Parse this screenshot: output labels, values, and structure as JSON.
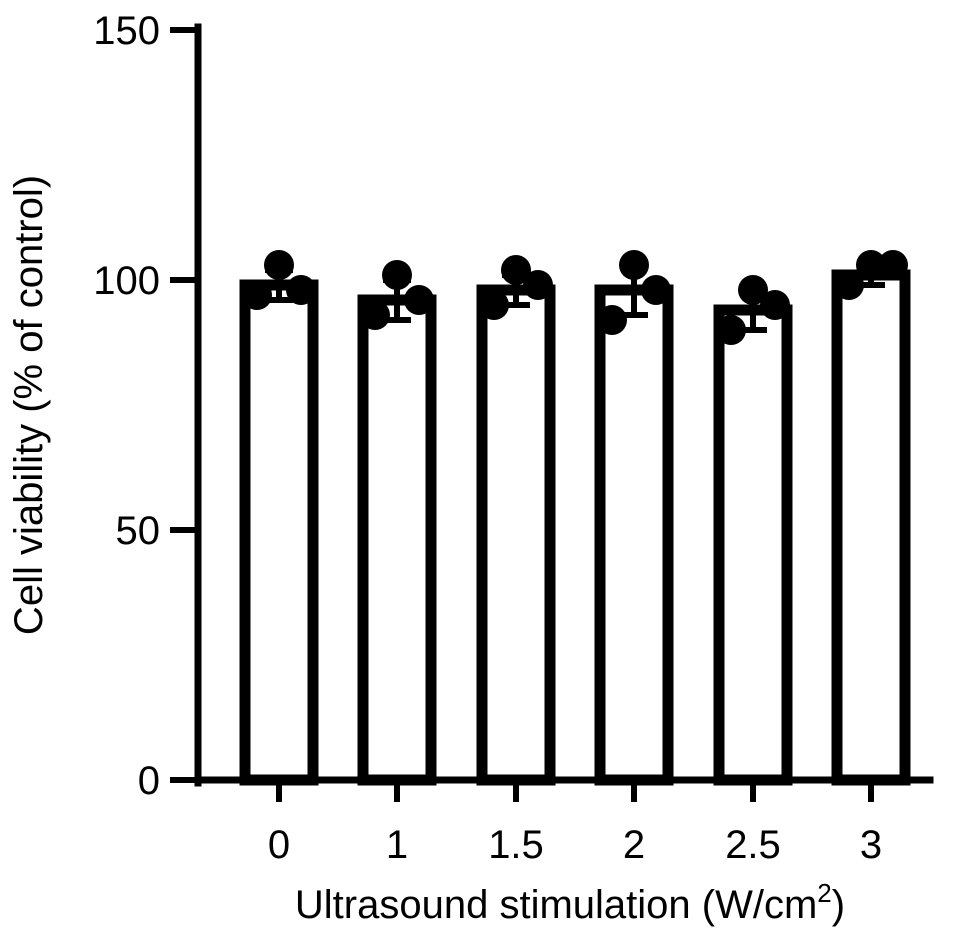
{
  "chart_data": {
    "type": "bar",
    "categories": [
      "0",
      "1",
      "1.5",
      "2",
      "2.5",
      "3"
    ],
    "values": [
      99,
      96,
      98,
      98,
      94,
      101
    ],
    "error": [
      3,
      4,
      3,
      5,
      4,
      2
    ],
    "points": [
      [
        97,
        103,
        98
      ],
      [
        93,
        101,
        96
      ],
      [
        95,
        102,
        99
      ],
      [
        92,
        103,
        98
      ],
      [
        90,
        98,
        95
      ],
      [
        99,
        103,
        103
      ]
    ],
    "ylabel": "Cell viability (% of control)",
    "xlabel_main": "Ultrasound stimulation (W/cm",
    "xlabel_sup": "2",
    "xlabel_end": ")",
    "ylim": [
      0,
      150
    ],
    "yticks": [
      0,
      50,
      100,
      150
    ],
    "grid": false,
    "bar_fill": "#ffffff",
    "stroke_color": "#000000"
  }
}
